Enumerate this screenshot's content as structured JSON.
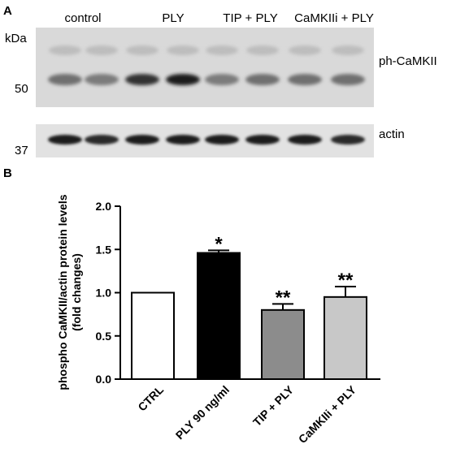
{
  "panel_a": {
    "label": "A",
    "kda_label": "kDa",
    "lane_groups": [
      "control",
      "PLY",
      "TIP + PLY",
      "CaMKIIi + PLY"
    ],
    "markers": [
      "50",
      "37"
    ],
    "blots": [
      {
        "name": "ph-CaMKII",
        "label": "ph-CaMKII",
        "band_intensity": [
          0.55,
          0.5,
          0.85,
          0.95,
          0.5,
          0.55,
          0.55,
          0.55
        ]
      },
      {
        "name": "actin",
        "label": "actin",
        "band_intensity": [
          0.95,
          0.9,
          0.95,
          0.95,
          0.95,
          0.95,
          0.95,
          0.9
        ]
      }
    ]
  },
  "panel_b": {
    "label": "B"
  },
  "chart_data": {
    "type": "bar",
    "title": "",
    "xlabel": "",
    "ylabel": "phospho CaMKII/actin protein levels (fold changes)",
    "ylabel_lines": [
      "phospho CaMKII/actin protein levels",
      "(fold changes)"
    ],
    "ylim": [
      0.0,
      2.0
    ],
    "yticks": [
      "0.0",
      "0.5",
      "1.0",
      "1.5",
      "2.0"
    ],
    "categories": [
      "CTRL",
      "PLY 90 ng/ml",
      "TIP + PLY",
      "CaMKIIi + PLY"
    ],
    "values": [
      1.0,
      1.46,
      0.8,
      0.95
    ],
    "errors": [
      0.0,
      0.03,
      0.07,
      0.12
    ],
    "significance": [
      "",
      "*",
      "**",
      "**"
    ],
    "bar_colors": [
      "#ffffff",
      "#000000",
      "#8c8c8c",
      "#c8c8c8"
    ],
    "grid": false,
    "legend": "none"
  }
}
